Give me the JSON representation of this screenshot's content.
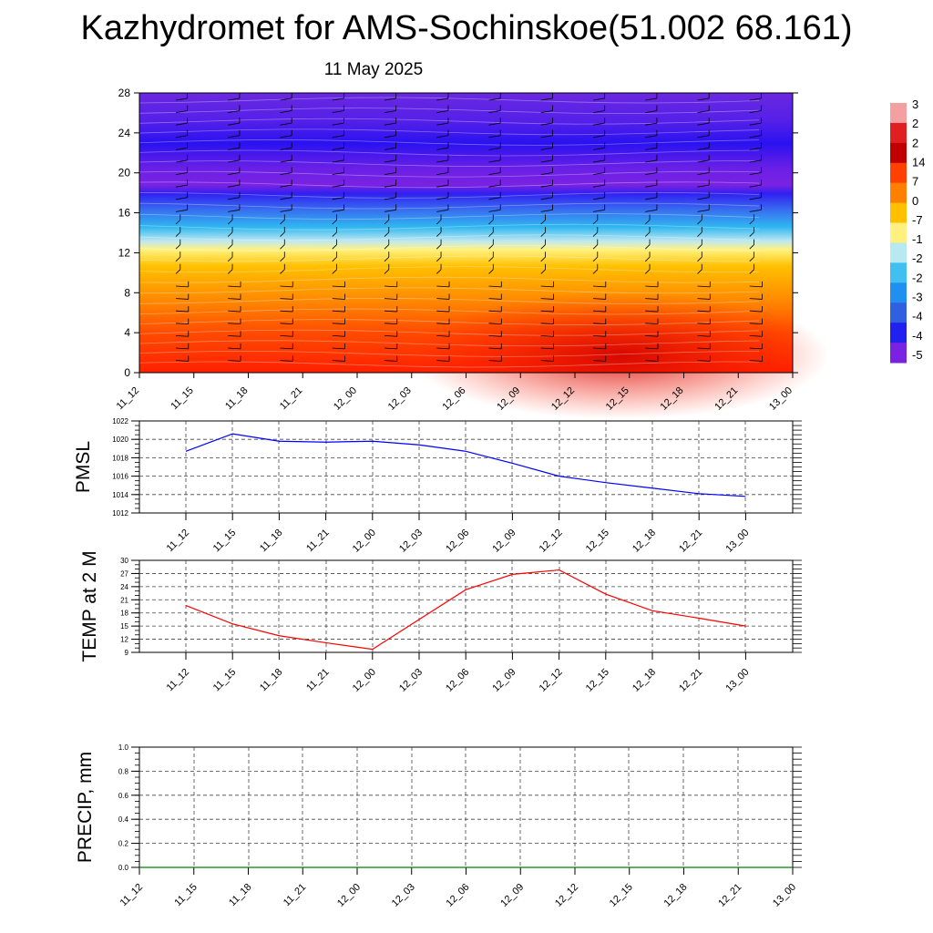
{
  "title": "Kazhydromet for AMS-Sochinskoe(51.002 68.161)",
  "subtitle": "11 May 2025",
  "chart_data": [
    {
      "type": "heatmap",
      "title": "",
      "x_tick_labels": [
        "11_12",
        "11_15",
        "11_18",
        "11_21",
        "12_00",
        "12_03",
        "12_06",
        "12_09",
        "12_12",
        "12_15",
        "12_18",
        "12_21",
        "13_00"
      ],
      "y_ticks": [
        0,
        4,
        8,
        12,
        16,
        20,
        24,
        28
      ],
      "ylim": [
        0,
        28
      ],
      "colorbar_labels": [
        "3",
        "2",
        "2",
        "14",
        "7",
        "0",
        "-7",
        "-1",
        "-2",
        "-2",
        "-3",
        "-4",
        "-4",
        "-5"
      ],
      "color_stops": [
        "#7a20e6",
        "#2a10f0",
        "#4060f0",
        "#30b0f0",
        "#b0e0f0",
        "#fff080",
        "#ffb000",
        "#ff6000",
        "#ff2000",
        "#d00000",
        "#ffb0b0"
      ],
      "wind_barbs": true
    },
    {
      "type": "line",
      "ylabel": "PMSL",
      "x": [
        "11_12",
        "11_15",
        "11_18",
        "11_21",
        "12_00",
        "12_03",
        "12_06",
        "12_09",
        "12_12",
        "12_15",
        "12_18",
        "12_21",
        "13_00"
      ],
      "y_ticks": [
        1012,
        1014,
        1016,
        1018,
        1020,
        1022
      ],
      "ylim": [
        1012,
        1022
      ],
      "series": [
        {
          "values": [
            1018.7,
            1020.6,
            1019.8,
            1019.7,
            1019.8,
            1019.4,
            1018.7,
            1017.4,
            1016.0,
            1015.3,
            1014.7,
            1014.1,
            1013.8
          ],
          "color": "#0000ff"
        }
      ],
      "grid": true
    },
    {
      "type": "line",
      "ylabel": "TEMP at 2 M",
      "x": [
        "11_12",
        "11_15",
        "11_18",
        "11_21",
        "12_00",
        "12_03",
        "12_06",
        "12_09",
        "12_12",
        "12_15",
        "12_18",
        "12_21",
        "13_00"
      ],
      "y_ticks": [
        9,
        12,
        15,
        18,
        21,
        24,
        27,
        30
      ],
      "ylim": [
        9,
        30
      ],
      "series": [
        {
          "values": [
            19.7,
            15.5,
            12.8,
            11.2,
            9.7,
            16.5,
            23.3,
            26.8,
            27.8,
            22.3,
            18.5,
            16.8,
            15.0
          ],
          "color": "#ff0000"
        }
      ],
      "grid": true
    },
    {
      "type": "line",
      "ylabel": "PRECIP, mm",
      "x": [
        "11_12",
        "11_15",
        "11_18",
        "11_21",
        "12_00",
        "12_03",
        "12_06",
        "12_09",
        "12_12",
        "12_15",
        "12_18",
        "12_21",
        "13_00"
      ],
      "y_tick_labels": [
        "0.0",
        "0.2",
        "0.4",
        "0.6",
        "0.8",
        "1.0"
      ],
      "ylim": [
        0,
        1
      ],
      "series": [
        {
          "values": [
            0,
            0,
            0,
            0,
            0,
            0,
            0,
            0,
            0,
            0,
            0,
            0,
            0
          ],
          "color": "#008000"
        }
      ],
      "grid": true
    }
  ]
}
